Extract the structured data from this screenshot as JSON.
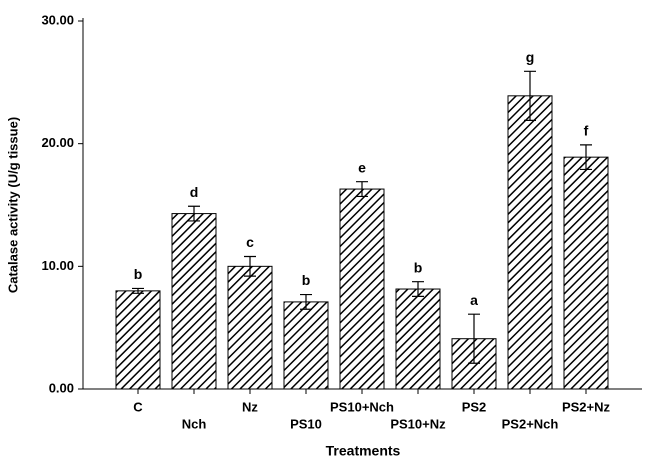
{
  "chart_data": {
    "type": "bar",
    "x_label": "Treatments",
    "y_label": "Catalase activity (U/g tissue)",
    "categories": [
      "C",
      "Nch",
      "Nz",
      "PS10",
      "PS10+Nch",
      "PS10+Nz",
      "PS2",
      "PS2+Nch",
      "PS2+Nz"
    ],
    "values": [
      8.0,
      14.3,
      10.0,
      7.1,
      16.3,
      8.15,
      4.1,
      23.9,
      18.9
    ],
    "errors": [
      0.2,
      0.6,
      0.8,
      0.6,
      0.6,
      0.6,
      2.0,
      2.0,
      1.0
    ],
    "letters": [
      "b",
      "d",
      "c",
      "b",
      "e",
      "b",
      "a",
      "g",
      "f"
    ],
    "color": "#000000",
    "ylim": [
      0,
      30
    ],
    "yticks": [
      {
        "value": 0,
        "label": "0.00"
      },
      {
        "value": 10,
        "label": "10.00"
      },
      {
        "value": 20,
        "label": "20.00"
      },
      {
        "value": 30,
        "label": "30.00"
      }
    ]
  }
}
